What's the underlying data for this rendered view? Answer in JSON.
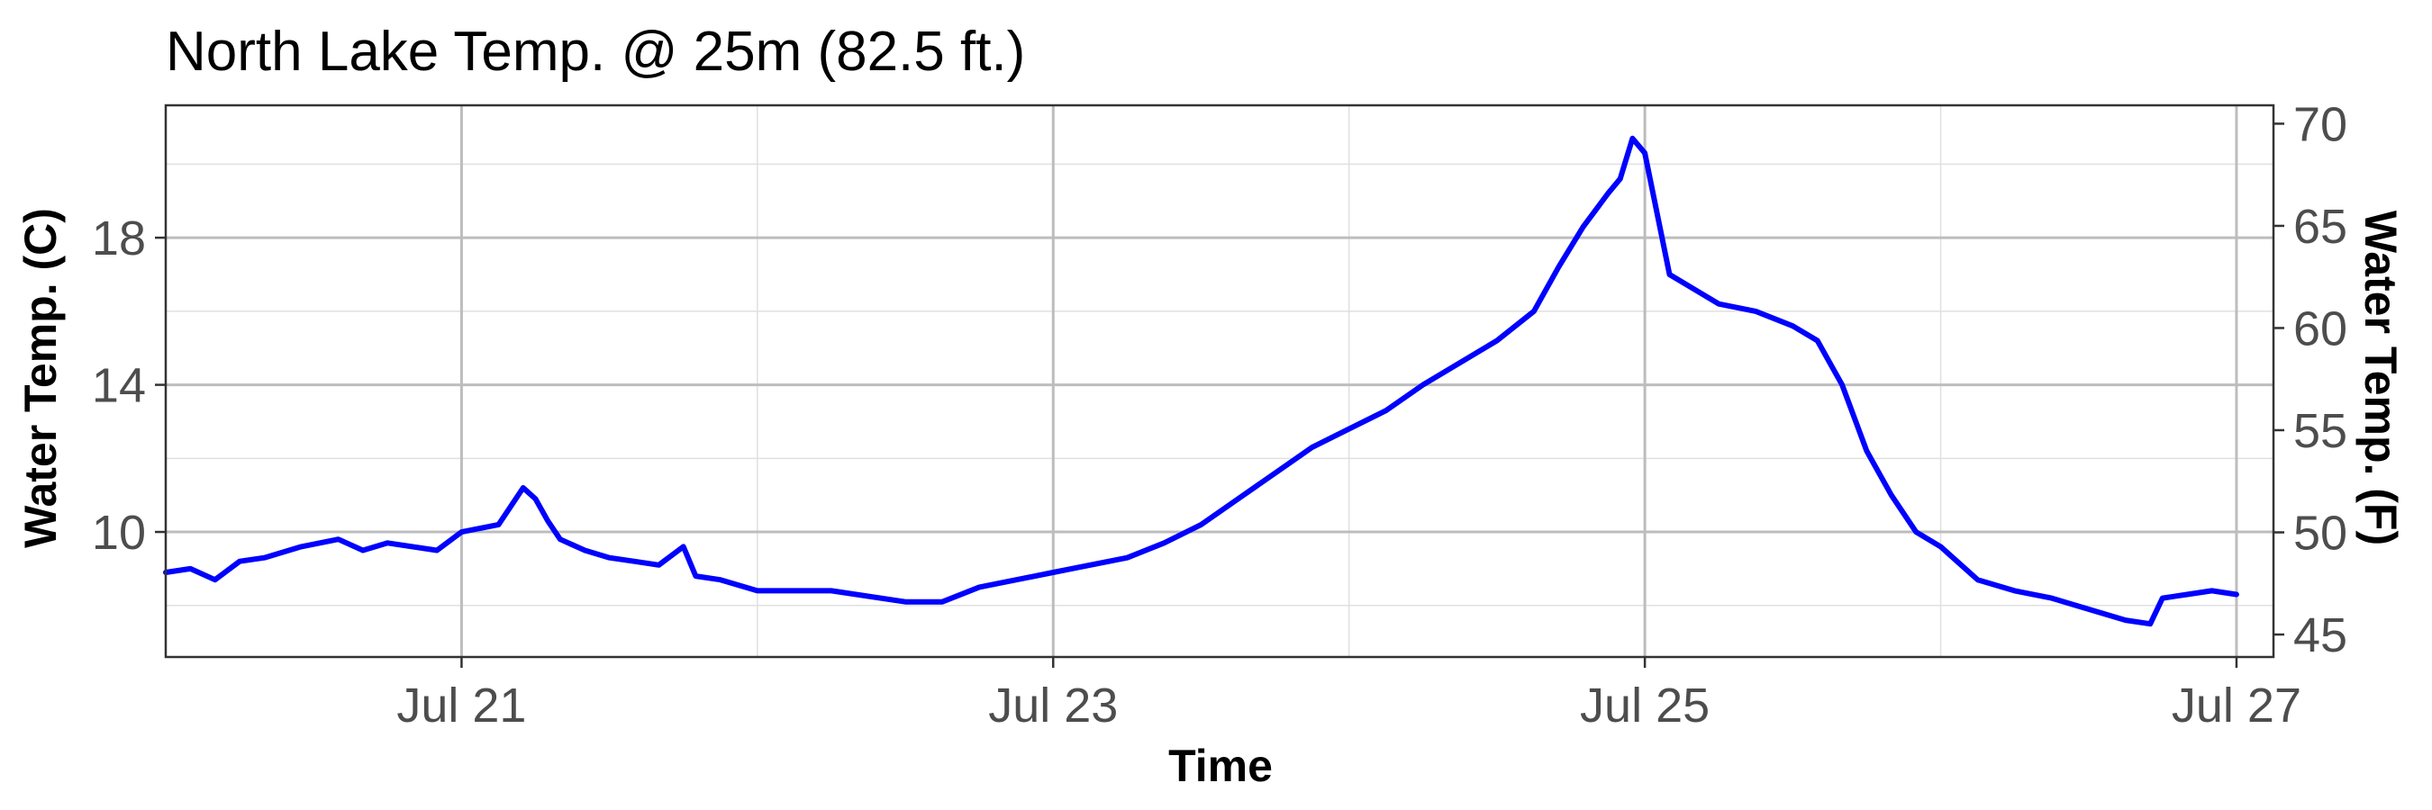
{
  "chart_data": {
    "type": "line",
    "title": "North Lake Temp. @ 25m (82.5 ft.)",
    "xlabel": "Time",
    "ylabel": "Water Temp. (C)",
    "y2label": "Water Temp. (F)",
    "xlim": [
      "2020-07-20 00:00",
      "2020-07-27 03:00"
    ],
    "ylim": [
      6.6,
      21.6
    ],
    "y2lim": [
      43.9,
      70.9
    ],
    "x_ticks": [
      "Jul 21",
      "Jul 23",
      "Jul 25",
      "Jul 27"
    ],
    "y_ticks": [
      10,
      14,
      18
    ],
    "y2_ticks": [
      45,
      50,
      55,
      60,
      65,
      70
    ],
    "grid": true,
    "legend": "none",
    "line_color": "#0000ff",
    "series": [
      {
        "x": [
          "2020-07-20 00:00",
          "2020-07-20 02:00",
          "2020-07-20 04:00",
          "2020-07-20 06:00",
          "2020-07-20 08:00",
          "2020-07-20 11:00",
          "2020-07-20 14:00",
          "2020-07-20 16:00",
          "2020-07-20 18:00",
          "2020-07-20 22:00",
          "2020-07-21 00:00",
          "2020-07-21 03:00",
          "2020-07-21 05:00",
          "2020-07-21 06:00",
          "2020-07-21 07:00",
          "2020-07-21 08:00",
          "2020-07-21 10:00",
          "2020-07-21 12:00",
          "2020-07-21 14:00",
          "2020-07-21 16:00",
          "2020-07-21 18:00",
          "2020-07-21 19:00",
          "2020-07-21 21:00",
          "2020-07-22 00:00",
          "2020-07-22 06:00",
          "2020-07-22 12:00",
          "2020-07-22 15:00",
          "2020-07-22 18:00",
          "2020-07-23 00:00",
          "2020-07-23 06:00",
          "2020-07-23 09:00",
          "2020-07-23 12:00",
          "2020-07-23 15:00",
          "2020-07-23 18:00",
          "2020-07-23 21:00",
          "2020-07-24 00:00",
          "2020-07-24 03:00",
          "2020-07-24 06:00",
          "2020-07-24 09:00",
          "2020-07-24 12:00",
          "2020-07-24 15:00",
          "2020-07-24 17:00",
          "2020-07-24 19:00",
          "2020-07-24 21:00",
          "2020-07-24 22:00",
          "2020-07-24 23:00",
          "2020-07-25 00:00",
          "2020-07-25 02:00",
          "2020-07-25 04:00",
          "2020-07-25 06:00",
          "2020-07-25 09:00",
          "2020-07-25 12:00",
          "2020-07-25 14:00",
          "2020-07-25 16:00",
          "2020-07-25 18:00",
          "2020-07-25 20:00",
          "2020-07-25 22:00",
          "2020-07-26 00:00",
          "2020-07-26 03:00",
          "2020-07-26 06:00",
          "2020-07-26 09:00",
          "2020-07-26 12:00",
          "2020-07-26 15:00",
          "2020-07-26 17:00",
          "2020-07-26 18:00",
          "2020-07-26 20:00",
          "2020-07-26 22:00",
          "2020-07-27 00:00"
        ],
        "values": [
          8.9,
          9.0,
          8.7,
          9.2,
          9.3,
          9.6,
          9.8,
          9.5,
          9.7,
          9.5,
          10.0,
          10.2,
          11.2,
          10.9,
          10.3,
          9.8,
          9.5,
          9.3,
          9.2,
          9.1,
          9.6,
          8.8,
          8.7,
          8.4,
          8.4,
          8.1,
          8.1,
          8.5,
          8.9,
          9.3,
          9.7,
          10.2,
          10.9,
          11.6,
          12.3,
          12.8,
          13.3,
          14.0,
          14.6,
          15.2,
          16.0,
          17.2,
          18.3,
          19.2,
          19.6,
          20.7,
          20.3,
          17.0,
          16.6,
          16.2,
          16.0,
          15.6,
          15.2,
          14.0,
          12.2,
          11.0,
          10.0,
          9.6,
          8.7,
          8.4,
          8.2,
          7.9,
          7.6,
          7.5,
          8.2,
          8.3,
          8.4,
          8.3
        ]
      }
    ]
  }
}
